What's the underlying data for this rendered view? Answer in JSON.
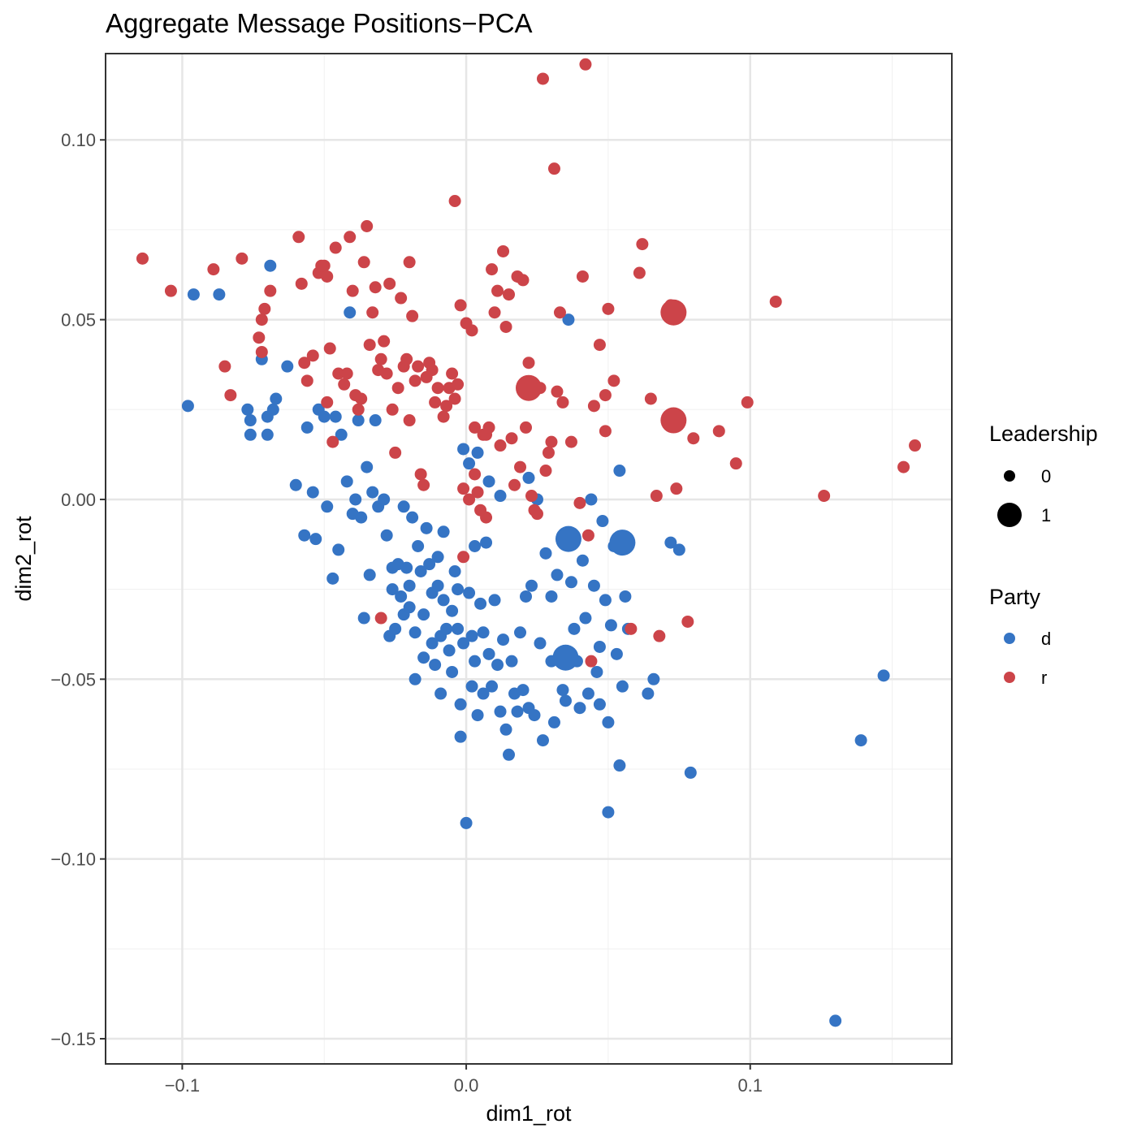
{
  "chart_data": {
    "type": "scatter",
    "title": "Aggregate Message Positions−PCA",
    "xlabel": "dim1_rot",
    "ylabel": "dim2_rot",
    "xlim": [
      -0.127,
      0.171
    ],
    "ylim": [
      -0.157,
      0.124
    ],
    "x_ticks": [
      -0.1,
      0.0,
      0.1
    ],
    "x_tick_labels": [
      "−0.1",
      "0.0",
      "0.1"
    ],
    "y_ticks": [
      -0.15,
      -0.1,
      -0.05,
      0.0,
      0.05,
      0.1
    ],
    "y_tick_labels": [
      "−0.15",
      "−0.10",
      "−0.05",
      "0.00",
      "0.05",
      "0.10"
    ],
    "grid": true,
    "legend_position": "right",
    "colors": {
      "d": "#3574c4",
      "r": "#cc4449"
    },
    "legends": {
      "leadership": {
        "title": "Leadership",
        "items": [
          "0",
          "1"
        ]
      },
      "party": {
        "title": "Party",
        "items": [
          "d",
          "r"
        ]
      }
    },
    "series": [
      {
        "name": "d",
        "leadership_0": [
          [
            -0.098,
            0.026
          ],
          [
            -0.096,
            0.057
          ],
          [
            -0.087,
            0.057
          ],
          [
            -0.077,
            0.025
          ],
          [
            -0.076,
            0.022
          ],
          [
            -0.076,
            0.018
          ],
          [
            -0.072,
            0.039
          ],
          [
            -0.07,
            0.023
          ],
          [
            -0.07,
            0.018
          ],
          [
            -0.069,
            0.065
          ],
          [
            -0.068,
            0.025
          ],
          [
            -0.067,
            0.028
          ],
          [
            -0.063,
            0.037
          ],
          [
            -0.06,
            0.004
          ],
          [
            -0.057,
            -0.01
          ],
          [
            -0.056,
            0.02
          ],
          [
            -0.054,
            0.002
          ],
          [
            -0.053,
            -0.011
          ],
          [
            -0.052,
            0.025
          ],
          [
            -0.05,
            0.023
          ],
          [
            -0.049,
            -0.002
          ],
          [
            -0.047,
            -0.022
          ],
          [
            -0.046,
            0.023
          ],
          [
            -0.045,
            -0.014
          ],
          [
            -0.044,
            0.018
          ],
          [
            -0.042,
            0.005
          ],
          [
            -0.041,
            0.052
          ],
          [
            -0.04,
            -0.004
          ],
          [
            -0.039,
            0.0
          ],
          [
            -0.038,
            0.022
          ],
          [
            -0.037,
            -0.005
          ],
          [
            -0.036,
            -0.033
          ],
          [
            -0.035,
            0.009
          ],
          [
            -0.034,
            -0.021
          ],
          [
            -0.033,
            0.002
          ],
          [
            -0.032,
            0.022
          ],
          [
            -0.031,
            -0.002
          ],
          [
            -0.029,
            0.0
          ],
          [
            -0.028,
            -0.01
          ],
          [
            -0.027,
            -0.038
          ],
          [
            -0.026,
            -0.019
          ],
          [
            -0.026,
            -0.025
          ],
          [
            -0.025,
            -0.036
          ],
          [
            -0.024,
            -0.018
          ],
          [
            -0.023,
            -0.027
          ],
          [
            -0.022,
            -0.032
          ],
          [
            -0.022,
            -0.002
          ],
          [
            -0.021,
            -0.019
          ],
          [
            -0.02,
            -0.024
          ],
          [
            -0.02,
            -0.03
          ],
          [
            -0.019,
            -0.005
          ],
          [
            -0.018,
            -0.037
          ],
          [
            -0.018,
            -0.05
          ],
          [
            -0.017,
            -0.013
          ],
          [
            -0.016,
            -0.02
          ],
          [
            -0.015,
            -0.032
          ],
          [
            -0.015,
            -0.044
          ],
          [
            -0.014,
            -0.008
          ],
          [
            -0.013,
            -0.018
          ],
          [
            -0.012,
            -0.026
          ],
          [
            -0.012,
            -0.04
          ],
          [
            -0.011,
            -0.046
          ],
          [
            -0.01,
            -0.016
          ],
          [
            -0.01,
            -0.024
          ],
          [
            -0.009,
            -0.038
          ],
          [
            -0.009,
            -0.054
          ],
          [
            -0.008,
            -0.009
          ],
          [
            -0.008,
            -0.028
          ],
          [
            -0.007,
            -0.036
          ],
          [
            -0.006,
            -0.042
          ],
          [
            -0.005,
            -0.031
          ],
          [
            -0.005,
            -0.048
          ],
          [
            -0.004,
            -0.02
          ],
          [
            -0.003,
            -0.025
          ],
          [
            -0.003,
            -0.036
          ],
          [
            -0.002,
            -0.057
          ],
          [
            -0.002,
            -0.066
          ],
          [
            -0.001,
            0.014
          ],
          [
            -0.001,
            -0.04
          ],
          [
            0.0,
            -0.09
          ],
          [
            0.001,
            0.01
          ],
          [
            0.001,
            -0.026
          ],
          [
            0.002,
            -0.038
          ],
          [
            0.002,
            -0.052
          ],
          [
            0.003,
            -0.013
          ],
          [
            0.003,
            -0.045
          ],
          [
            0.004,
            -0.06
          ],
          [
            0.004,
            0.013
          ],
          [
            0.005,
            -0.029
          ],
          [
            0.006,
            -0.037
          ],
          [
            0.006,
            -0.054
          ],
          [
            0.007,
            -0.012
          ],
          [
            0.008,
            0.005
          ],
          [
            0.008,
            -0.043
          ],
          [
            0.009,
            -0.052
          ],
          [
            0.01,
            -0.028
          ],
          [
            0.011,
            -0.046
          ],
          [
            0.012,
            0.001
          ],
          [
            0.012,
            -0.059
          ],
          [
            0.013,
            -0.039
          ],
          [
            0.014,
            -0.064
          ],
          [
            0.015,
            -0.071
          ],
          [
            0.016,
            -0.045
          ],
          [
            0.017,
            -0.054
          ],
          [
            0.018,
            -0.059
          ],
          [
            0.019,
            -0.037
          ],
          [
            0.02,
            -0.053
          ],
          [
            0.021,
            -0.027
          ],
          [
            0.022,
            0.006
          ],
          [
            0.022,
            -0.058
          ],
          [
            0.023,
            -0.024
          ],
          [
            0.024,
            -0.06
          ],
          [
            0.025,
            0.0
          ],
          [
            0.026,
            -0.04
          ],
          [
            0.027,
            -0.067
          ],
          [
            0.028,
            -0.015
          ],
          [
            0.03,
            -0.027
          ],
          [
            0.03,
            -0.045
          ],
          [
            0.031,
            -0.062
          ],
          [
            0.032,
            -0.021
          ],
          [
            0.033,
            -0.043
          ],
          [
            0.034,
            -0.053
          ],
          [
            0.035,
            -0.056
          ],
          [
            0.036,
            0.05
          ],
          [
            0.037,
            -0.023
          ],
          [
            0.038,
            -0.036
          ],
          [
            0.039,
            -0.045
          ],
          [
            0.04,
            -0.058
          ],
          [
            0.041,
            -0.017
          ],
          [
            0.042,
            -0.033
          ],
          [
            0.043,
            -0.054
          ],
          [
            0.044,
            0.0
          ],
          [
            0.045,
            -0.024
          ],
          [
            0.046,
            -0.048
          ],
          [
            0.047,
            -0.057
          ],
          [
            0.047,
            -0.041
          ],
          [
            0.048,
            -0.006
          ],
          [
            0.049,
            -0.028
          ],
          [
            0.05,
            -0.062
          ],
          [
            0.051,
            -0.035
          ],
          [
            0.052,
            -0.013
          ],
          [
            0.053,
            -0.043
          ],
          [
            0.054,
            0.008
          ],
          [
            0.054,
            -0.074
          ],
          [
            0.055,
            -0.052
          ],
          [
            0.056,
            -0.027
          ],
          [
            0.057,
            -0.036
          ],
          [
            0.05,
            -0.087
          ],
          [
            0.064,
            -0.054
          ],
          [
            0.066,
            -0.05
          ],
          [
            0.072,
            -0.012
          ],
          [
            0.075,
            -0.014
          ],
          [
            0.079,
            -0.076
          ],
          [
            0.139,
            -0.067
          ],
          [
            0.147,
            -0.049
          ],
          [
            0.13,
            -0.145
          ]
        ],
        "leadership_1": [
          [
            0.036,
            -0.011
          ],
          [
            0.055,
            -0.012
          ],
          [
            0.035,
            -0.044
          ]
        ]
      },
      {
        "name": "r",
        "leadership_0": [
          [
            -0.114,
            0.067
          ],
          [
            -0.104,
            0.058
          ],
          [
            -0.089,
            0.064
          ],
          [
            -0.085,
            0.037
          ],
          [
            -0.083,
            0.029
          ],
          [
            -0.079,
            0.067
          ],
          [
            -0.073,
            0.045
          ],
          [
            -0.072,
            0.041
          ],
          [
            -0.072,
            0.05
          ],
          [
            -0.071,
            0.053
          ],
          [
            -0.069,
            0.058
          ],
          [
            -0.059,
            0.073
          ],
          [
            -0.058,
            0.06
          ],
          [
            -0.057,
            0.038
          ],
          [
            -0.056,
            0.033
          ],
          [
            -0.054,
            0.04
          ],
          [
            -0.052,
            0.063
          ],
          [
            -0.051,
            0.065
          ],
          [
            -0.05,
            0.065
          ],
          [
            -0.049,
            0.062
          ],
          [
            -0.049,
            0.027
          ],
          [
            -0.048,
            0.042
          ],
          [
            -0.047,
            0.016
          ],
          [
            -0.046,
            0.07
          ],
          [
            -0.045,
            0.035
          ],
          [
            -0.043,
            0.032
          ],
          [
            -0.042,
            0.035
          ],
          [
            -0.041,
            0.073
          ],
          [
            -0.04,
            0.058
          ],
          [
            -0.039,
            0.029
          ],
          [
            -0.038,
            0.025
          ],
          [
            -0.037,
            0.028
          ],
          [
            -0.036,
            0.066
          ],
          [
            -0.035,
            0.076
          ],
          [
            -0.034,
            0.043
          ],
          [
            -0.033,
            0.052
          ],
          [
            -0.032,
            0.059
          ],
          [
            -0.031,
            0.036
          ],
          [
            -0.03,
            0.039
          ],
          [
            -0.029,
            0.044
          ],
          [
            -0.028,
            0.035
          ],
          [
            -0.027,
            0.06
          ],
          [
            -0.026,
            0.025
          ],
          [
            -0.025,
            0.013
          ],
          [
            -0.024,
            0.031
          ],
          [
            -0.023,
            0.056
          ],
          [
            -0.022,
            0.037
          ],
          [
            -0.021,
            0.039
          ],
          [
            -0.02,
            0.066
          ],
          [
            -0.02,
            0.022
          ],
          [
            -0.019,
            0.051
          ],
          [
            -0.018,
            0.033
          ],
          [
            -0.017,
            0.037
          ],
          [
            -0.016,
            0.007
          ],
          [
            -0.015,
            0.004
          ],
          [
            -0.014,
            0.034
          ],
          [
            -0.013,
            0.038
          ],
          [
            -0.012,
            0.036
          ],
          [
            -0.011,
            0.027
          ],
          [
            -0.01,
            0.031
          ],
          [
            -0.008,
            0.023
          ],
          [
            -0.007,
            0.026
          ],
          [
            -0.006,
            0.031
          ],
          [
            -0.005,
            0.035
          ],
          [
            -0.004,
            0.083
          ],
          [
            -0.004,
            0.028
          ],
          [
            -0.003,
            0.032
          ],
          [
            -0.002,
            0.054
          ],
          [
            -0.001,
            0.003
          ],
          [
            0.0,
            0.049
          ],
          [
            0.001,
            0.0
          ],
          [
            0.002,
            0.047
          ],
          [
            0.003,
            0.007
          ],
          [
            0.003,
            0.02
          ],
          [
            0.004,
            0.002
          ],
          [
            0.005,
            -0.003
          ],
          [
            0.006,
            0.018
          ],
          [
            0.007,
            0.018
          ],
          [
            0.008,
            0.02
          ],
          [
            0.009,
            0.064
          ],
          [
            0.01,
            0.052
          ],
          [
            0.011,
            0.058
          ],
          [
            0.012,
            0.015
          ],
          [
            0.013,
            0.069
          ],
          [
            0.014,
            0.048
          ],
          [
            0.015,
            0.057
          ],
          [
            0.016,
            0.017
          ],
          [
            0.017,
            0.004
          ],
          [
            0.018,
            0.062
          ],
          [
            0.019,
            0.009
          ],
          [
            0.02,
            0.061
          ],
          [
            0.021,
            0.02
          ],
          [
            0.022,
            0.038
          ],
          [
            0.023,
            0.001
          ],
          [
            0.024,
            -0.003
          ],
          [
            0.025,
            -0.004
          ],
          [
            0.026,
            0.031
          ],
          [
            0.027,
            0.117
          ],
          [
            0.028,
            0.008
          ],
          [
            0.029,
            0.013
          ],
          [
            0.03,
            0.016
          ],
          [
            0.031,
            0.092
          ],
          [
            0.032,
            0.03
          ],
          [
            0.033,
            0.052
          ],
          [
            0.034,
            0.027
          ],
          [
            0.037,
            0.016
          ],
          [
            0.04,
            -0.001
          ],
          [
            0.041,
            0.062
          ],
          [
            0.042,
            0.121
          ],
          [
            0.043,
            -0.01
          ],
          [
            0.045,
            0.026
          ],
          [
            0.047,
            0.043
          ],
          [
            0.049,
            0.029
          ],
          [
            0.049,
            0.019
          ],
          [
            0.05,
            0.053
          ],
          [
            0.052,
            0.033
          ],
          [
            0.058,
            -0.036
          ],
          [
            0.061,
            0.063
          ],
          [
            0.062,
            0.071
          ],
          [
            0.065,
            0.028
          ],
          [
            0.067,
            0.001
          ],
          [
            0.068,
            -0.038
          ],
          [
            0.072,
            0.054
          ],
          [
            0.074,
            0.003
          ],
          [
            0.078,
            -0.034
          ],
          [
            0.08,
            0.017
          ],
          [
            0.089,
            0.019
          ],
          [
            0.095,
            0.01
          ],
          [
            0.099,
            0.027
          ],
          [
            0.109,
            0.055
          ],
          [
            0.126,
            0.001
          ],
          [
            0.154,
            0.009
          ],
          [
            0.158,
            0.015
          ],
          [
            -0.001,
            -0.016
          ],
          [
            -0.03,
            -0.033
          ],
          [
            0.007,
            -0.005
          ],
          [
            0.044,
            -0.045
          ]
        ],
        "leadership_1": [
          [
            0.022,
            0.031
          ],
          [
            0.073,
            0.052
          ],
          [
            0.073,
            0.022
          ]
        ]
      }
    ]
  }
}
